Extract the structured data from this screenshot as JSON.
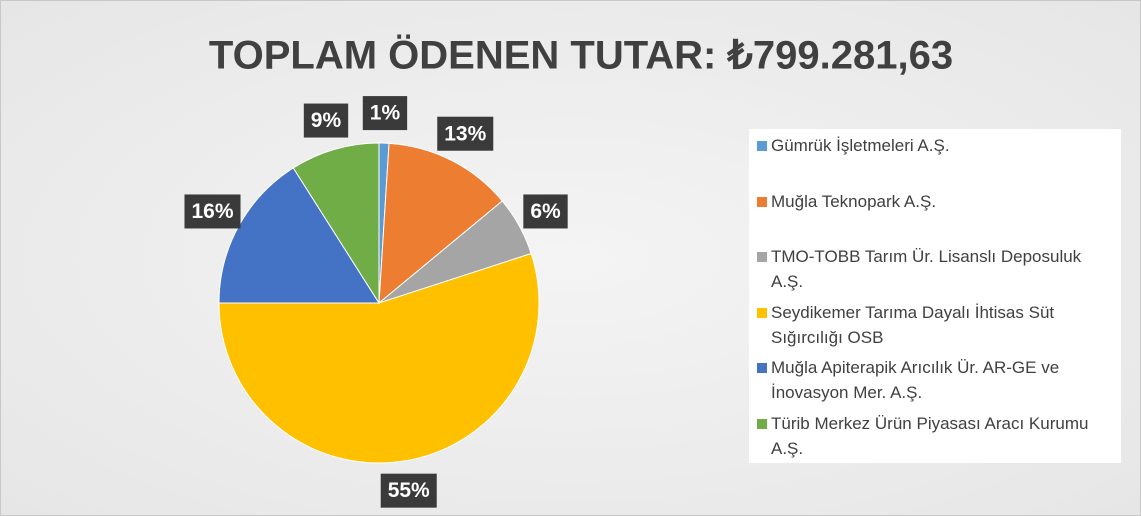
{
  "chart_data": {
    "type": "pie",
    "title": "TOPLAM ÖDENEN TUTAR: ₺799.281,63",
    "categories": [
      "Gümrük İşletmeleri A.Ş.",
      "Muğla Teknopark A.Ş.",
      "TMO-TOBB Tarım Ür. Lisanslı Deposuluk A.Ş.",
      "Seydikemer Tarıma Dayalı İhtisas Süt Sığırcılığı OSB",
      "Muğla Apiterapik Arıcılık Ür. AR-GE ve İnovasyon Mer. A.Ş.",
      "Türib Merkez Ürün Piyasası Aracı Kurumu A.Ş."
    ],
    "values": [
      1,
      13,
      6,
      55,
      16,
      9
    ],
    "value_labels": [
      "1%",
      "13%",
      "6%",
      "55%",
      "16%",
      "9%"
    ],
    "colors": [
      "#5b9bd5",
      "#ed7d31",
      "#a5a5a5",
      "#ffc000",
      "#4472c4",
      "#70ad47"
    ],
    "legend": "right"
  }
}
